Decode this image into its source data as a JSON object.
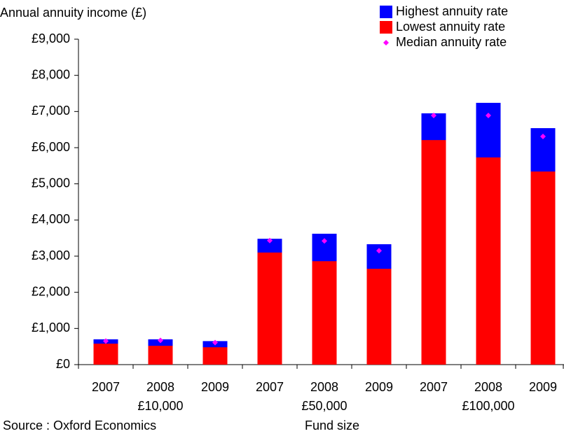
{
  "chart_data": {
    "type": "bar",
    "y_label": "Annual annuity income (£)",
    "x_label": "Fund size",
    "source": "Source : Oxford Economics",
    "categories": [
      "2007",
      "2008",
      "2009",
      "2007",
      "2008",
      "2009",
      "2007",
      "2008",
      "2009"
    ],
    "groups": [
      "£10,000",
      "£50,000",
      "£100,000"
    ],
    "series": [
      {
        "name": "Highest annuity rate",
        "color": "#0000ff",
        "style": "bar",
        "values": [
          700,
          700,
          650,
          3480,
          3620,
          3330,
          6950,
          7240,
          6540
        ]
      },
      {
        "name": "Lowest annuity rate",
        "color": "#ff0000",
        "style": "bar",
        "values": [
          580,
          520,
          480,
          3100,
          2860,
          2650,
          6210,
          5730,
          5340
        ]
      },
      {
        "name": "Median annuity rate",
        "color": "#ff00ff",
        "style": "marker",
        "values": [
          650,
          670,
          610,
          3430,
          3420,
          3150,
          6890,
          6890,
          6310
        ]
      }
    ],
    "ylim": [
      0,
      9000
    ],
    "yticks": [
      {
        "value": 0,
        "label": "£0"
      },
      {
        "value": 1000,
        "label": "£1,000"
      },
      {
        "value": 2000,
        "label": "£2,000"
      },
      {
        "value": 3000,
        "label": "£3,000"
      },
      {
        "value": 4000,
        "label": "£4,000"
      },
      {
        "value": 5000,
        "label": "£5,000"
      },
      {
        "value": 6000,
        "label": "£6,000"
      },
      {
        "value": 7000,
        "label": "£7,000"
      },
      {
        "value": 8000,
        "label": "£8,000"
      },
      {
        "value": 9000,
        "label": "£9,000"
      }
    ]
  }
}
